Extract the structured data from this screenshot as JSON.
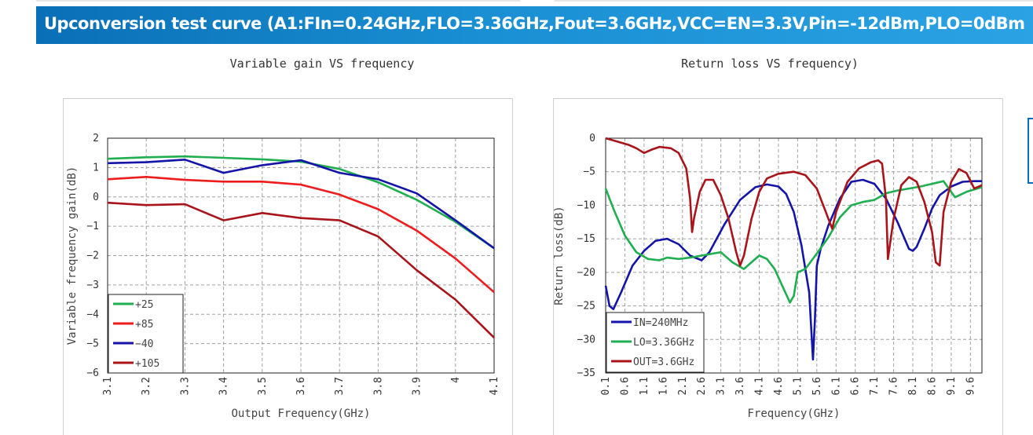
{
  "banner": {
    "title": "Upconversion test curve (A1:FIn=0.24GHz,FLO=3.36GHz,Fout=3.6GHz,VCC=EN=3.3V,Pin=-12dBm,PLO=0dBm",
    "color": "#0a6fb6"
  },
  "chart_data": [
    {
      "type": "line",
      "title": "Variable gain VS frequency",
      "xlabel": "Output Frequency(GHz)",
      "ylabel": "Variable frequency gain(dB)",
      "xlim": [
        3.1,
        4.1
      ],
      "ylim": [
        -6,
        2
      ],
      "xticks": [
        "3.1",
        "3.2",
        "3.3",
        "3.4",
        "3.5",
        "3.6",
        "3.7",
        "3.8",
        "3.9",
        "4",
        "4.1"
      ],
      "yticks": [
        "2",
        "1",
        "0",
        "−1",
        "−2",
        "−3",
        "−4",
        "−5",
        "−6"
      ],
      "grid": true,
      "legend_position": "bottom-left",
      "series": [
        {
          "name": "+25",
          "color": "#1fae50",
          "x": [
            3.1,
            3.2,
            3.3,
            3.4,
            3.5,
            3.6,
            3.7,
            3.8,
            3.9,
            4.0,
            4.1
          ],
          "y": [
            1.3,
            1.35,
            1.38,
            1.33,
            1.28,
            1.2,
            0.95,
            0.5,
            -0.1,
            -0.85,
            -1.75
          ]
        },
        {
          "name": "+85",
          "color": "#ee1c1c",
          "x": [
            3.1,
            3.2,
            3.3,
            3.4,
            3.5,
            3.6,
            3.7,
            3.8,
            3.9,
            4.0,
            4.1
          ],
          "y": [
            0.6,
            0.68,
            0.58,
            0.52,
            0.52,
            0.42,
            0.08,
            -0.42,
            -1.15,
            -2.1,
            -3.25
          ]
        },
        {
          "name": "−40",
          "color": "#1414a8",
          "x": [
            3.1,
            3.2,
            3.3,
            3.4,
            3.5,
            3.6,
            3.7,
            3.8,
            3.9,
            4.0,
            4.1
          ],
          "y": [
            1.15,
            1.18,
            1.27,
            0.82,
            1.08,
            1.25,
            0.82,
            0.6,
            0.12,
            -0.8,
            -1.75
          ]
        },
        {
          "name": "+105",
          "color": "#a8141a",
          "x": [
            3.1,
            3.2,
            3.3,
            3.4,
            3.5,
            3.6,
            3.7,
            3.8,
            3.9,
            4.0,
            4.1
          ],
          "y": [
            -0.2,
            -0.28,
            -0.25,
            -0.8,
            -0.55,
            -0.72,
            -0.8,
            -1.35,
            -2.5,
            -3.5,
            -4.8
          ]
        }
      ]
    },
    {
      "type": "line",
      "title": "Return loss VS frequency)",
      "xlabel": "Frequency(GHz)",
      "ylabel": "Return loss(dB)",
      "xlim": [
        0.1,
        9.9
      ],
      "ylim": [
        -35,
        0
      ],
      "xticks": [
        "0.1",
        "0.6",
        "1.1",
        "1.6",
        "2.1",
        "2.6",
        "3.1",
        "3.6",
        "4.1",
        "4.6",
        "5.1",
        "5.6",
        "6.1",
        "6.6",
        "7.1",
        "7.6",
        "8.1",
        "8.6",
        "9.1",
        "9.6"
      ],
      "yticks": [
        "0",
        "−5",
        "−10",
        "−15",
        "−20",
        "−25",
        "−30",
        "−35"
      ],
      "grid": true,
      "legend_position": "bottom-left",
      "series": [
        {
          "name": "IN=240MHz",
          "color": "#1414a8",
          "x": [
            0.1,
            0.2,
            0.3,
            0.5,
            0.8,
            1.1,
            1.4,
            1.7,
            2.0,
            2.3,
            2.6,
            2.8,
            3.2,
            3.6,
            4.0,
            4.3,
            4.6,
            4.8,
            5.0,
            5.2,
            5.4,
            5.45,
            5.5,
            5.55,
            5.6,
            5.7,
            5.9,
            6.2,
            6.5,
            6.8,
            7.1,
            7.4,
            7.7,
            8.0,
            8.1,
            8.2,
            8.4,
            8.6,
            8.8,
            9.1,
            9.4,
            9.7,
            9.9
          ],
          "y": [
            -22,
            -25,
            -25.5,
            -23,
            -19,
            -16.8,
            -15.3,
            -15,
            -15.8,
            -17.5,
            -18.2,
            -17,
            -12.8,
            -9.2,
            -7.3,
            -6.9,
            -7.2,
            -8.3,
            -11,
            -16,
            -23,
            -28,
            -33,
            -27,
            -19,
            -16.5,
            -13,
            -9,
            -6.5,
            -6.2,
            -6.8,
            -9,
            -12.5,
            -16.5,
            -16.8,
            -16.2,
            -13.5,
            -10.5,
            -8.5,
            -7.2,
            -6.5,
            -6.4,
            -6.4
          ]
        },
        {
          "name": "LO=3.36GHz",
          "color": "#1fae50",
          "x": [
            0.1,
            0.3,
            0.6,
            0.9,
            1.2,
            1.5,
            1.7,
            2.0,
            2.3,
            2.6,
            2.9,
            3.1,
            3.4,
            3.7,
            3.9,
            4.1,
            4.3,
            4.5,
            4.7,
            4.9,
            5.0,
            5.1,
            5.3,
            5.6,
            5.9,
            6.2,
            6.5,
            6.8,
            7.1,
            7.4,
            7.7,
            8.0,
            8.3,
            8.6,
            8.9,
            9.2,
            9.5,
            9.9
          ],
          "y": [
            -7.5,
            -10.5,
            -14.5,
            -17,
            -18,
            -18.2,
            -17.8,
            -18,
            -17.8,
            -17.5,
            -17.2,
            -17,
            -18.5,
            -19.5,
            -18.5,
            -17.5,
            -18,
            -19.5,
            -22,
            -24.5,
            -23.5,
            -20,
            -19.5,
            -17.2,
            -14.8,
            -11.8,
            -10,
            -9.5,
            -9.2,
            -8.2,
            -7.8,
            -7.5,
            -7.2,
            -6.8,
            -6.4,
            -8.8,
            -8,
            -7.3
          ]
        },
        {
          "name": "OUT=3.6GHz",
          "color": "#a8141a",
          "x": [
            0.1,
            0.4,
            0.7,
            0.9,
            1.1,
            1.3,
            1.5,
            1.8,
            2.0,
            2.2,
            2.3,
            2.35,
            2.4,
            2.55,
            2.7,
            2.9,
            3.1,
            3.3,
            3.5,
            3.6,
            3.7,
            3.9,
            4.1,
            4.3,
            4.6,
            5.0,
            5.3,
            5.6,
            5.8,
            6.0,
            6.1,
            6.2,
            6.4,
            6.7,
            7.0,
            7.2,
            7.3,
            7.4,
            7.45,
            7.5,
            7.6,
            7.8,
            8.0,
            8.2,
            8.4,
            8.6,
            8.7,
            8.8,
            8.9,
            9.1,
            9.3,
            9.5,
            9.7,
            9.9
          ],
          "y": [
            0,
            -0.5,
            -1,
            -1.5,
            -2.2,
            -1.7,
            -1.3,
            -1.5,
            -2.2,
            -4.5,
            -9,
            -14,
            -12,
            -8,
            -6.2,
            -6.2,
            -8.5,
            -12,
            -17,
            -19,
            -17.5,
            -12,
            -8,
            -6,
            -5.3,
            -5,
            -5.5,
            -7.5,
            -10.5,
            -13.5,
            -11,
            -9.5,
            -6.5,
            -4.5,
            -3.6,
            -3.3,
            -3.8,
            -9,
            -18,
            -16,
            -12,
            -7,
            -5.8,
            -6.5,
            -9.5,
            -14,
            -18.5,
            -19,
            -11,
            -6.5,
            -4.6,
            -5.2,
            -7.5,
            -7
          ]
        }
      ]
    }
  ]
}
